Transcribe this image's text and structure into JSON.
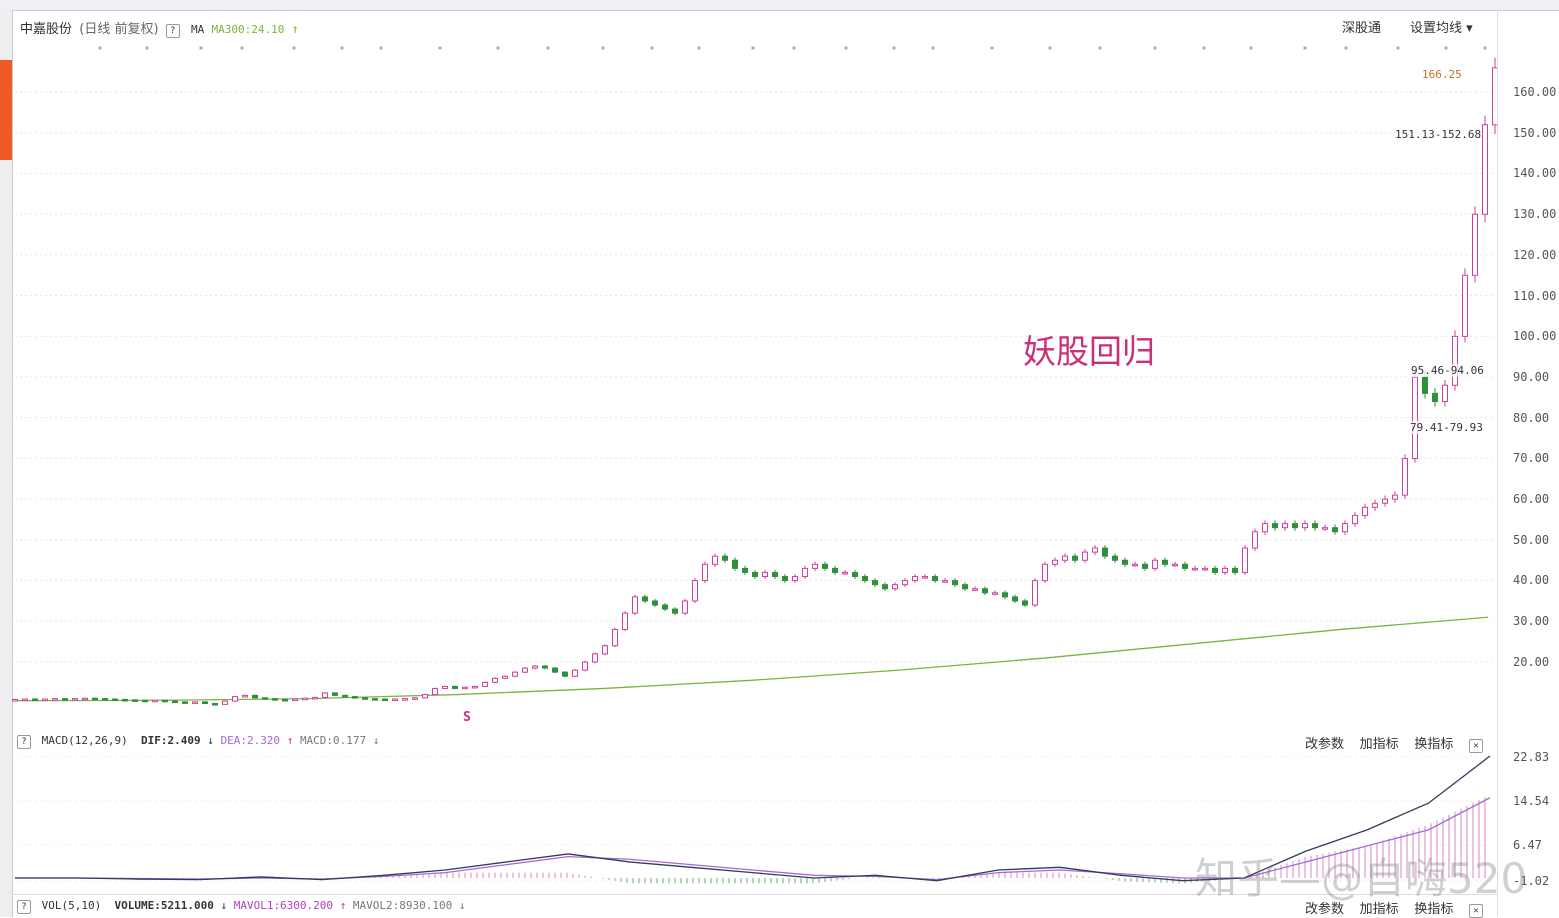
{
  "header": {
    "stock_name": "中嘉股份",
    "period": "(日线 前复权)",
    "ma_label": "MA",
    "ma300_label": "MA300:24.10",
    "ma300_arrow": "↑",
    "links": [
      "深股通",
      "设置均线 ▾"
    ]
  },
  "annotation": "妖股回归",
  "watermark": "知乎—@自嗨520",
  "price_labels": {
    "high": "166.25",
    "range1": "151.13-152.68",
    "range2": "95.46-94.06",
    "range3": "79.41-79.93",
    "marker": "S"
  },
  "macd": {
    "name": "MACD(12,26,9)",
    "dif": "DIF:2.409",
    "dif_arrow": "↓",
    "dea": "DEA:2.320",
    "dea_arrow": "↑",
    "macd": "MACD:0.177",
    "macd_arrow": "↓",
    "actions": [
      "改参数",
      "加指标",
      "换指标"
    ],
    "close": "✕",
    "yticks": [
      "22.83",
      "14.54",
      "6.47",
      "-1.02"
    ]
  },
  "vol": {
    "name": "VOL(5,10)",
    "volume": "VOLUME:5211.000",
    "volume_arrow": "↓",
    "mavol1": "MAVOL1:6300.200",
    "mavol1_arrow": "↑",
    "mavol2": "MAVOL2:8930.100",
    "mavol2_arrow": "↓",
    "actions": [
      "改参数",
      "加指标",
      "换指标"
    ],
    "close": "✕"
  },
  "colors": {
    "up": "#d0409a",
    "down": "#2f8f3a",
    "ma300": "#7cb342",
    "dif": "#333a5a",
    "dea": "#a66ad8",
    "annotation": "#c8307a"
  },
  "chart_data": {
    "type": "candlestick",
    "ylim": [
      20,
      160
    ],
    "yticks": [
      "160.00",
      "150.00",
      "140.00",
      "130.00",
      "120.00",
      "110.00",
      "100.00",
      "90.00",
      "80.00",
      "70.00",
      "60.00",
      "50.00",
      "40.00",
      "30.00",
      "20.00"
    ],
    "close": [
      10.8,
      10.9,
      10.8,
      10.9,
      11.0,
      10.9,
      11.0,
      11.1,
      11.0,
      10.9,
      10.8,
      10.7,
      10.6,
      10.5,
      10.6,
      10.4,
      10.2,
      10.0,
      10.2,
      9.8,
      9.6,
      10.4,
      11.5,
      11.8,
      11.2,
      11.0,
      10.8,
      10.7,
      10.9,
      11.1,
      11.3,
      12.4,
      11.8,
      11.5,
      11.2,
      11.0,
      10.9,
      10.8,
      10.9,
      11.0,
      11.2,
      12,
      13.5,
      14,
      13.5,
      13.8,
      14,
      15,
      16,
      16.5,
      17.5,
      18.5,
      19,
      18.5,
      17.5,
      16.5,
      18,
      20,
      22,
      24,
      28,
      32,
      36,
      35,
      34,
      33,
      32,
      35,
      40,
      44,
      46,
      45,
      43,
      42,
      41,
      42,
      41,
      40,
      41,
      43,
      44,
      43,
      42,
      42,
      41,
      40,
      39,
      38,
      39,
      40,
      41,
      41,
      40,
      40,
      39,
      38,
      38,
      37,
      37,
      36,
      35,
      34,
      40,
      44,
      45,
      46,
      45,
      47,
      48,
      46,
      45,
      44,
      44,
      43,
      45,
      44,
      44,
      43,
      43,
      43,
      42,
      43,
      42,
      48,
      52,
      54,
      53,
      54,
      53,
      54,
      53,
      53,
      52,
      54,
      56,
      58,
      59,
      60,
      61,
      70,
      90,
      86,
      84,
      88,
      100,
      115,
      130,
      152,
      166
    ],
    "ma300": [
      10.5,
      10.6,
      11,
      12,
      13.5,
      15.5,
      18,
      21,
      24.5,
      28,
      31
    ],
    "macd_dif": [
      0,
      0,
      -0.2,
      -0.3,
      0.2,
      -0.3,
      0.5,
      1.5,
      3,
      4.5,
      3,
      2,
      1,
      0,
      0.5,
      -0.5,
      1.5,
      2,
      0.5,
      -0.5,
      0,
      5,
      9,
      14,
      22.8
    ],
    "macd_dea": [
      0,
      0,
      -0.1,
      -0.2,
      0,
      -0.2,
      0.3,
      1,
      2.5,
      4,
      3.5,
      2.5,
      1.5,
      0.5,
      0.3,
      -0.3,
      1,
      1.5,
      0.8,
      0,
      0,
      3,
      6,
      9,
      15
    ]
  }
}
